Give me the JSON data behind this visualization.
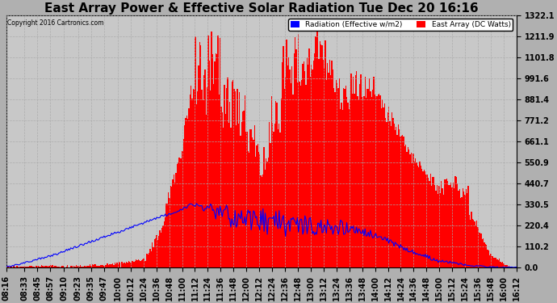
{
  "title": "East Array Power & Effective Solar Radiation Tue Dec 20 16:16",
  "copyright": "Copyright 2016 Cartronics.com",
  "legend_blue": "Radiation (Effective w/m2)",
  "legend_red": "East Array (DC Watts)",
  "ymax": 1322.1,
  "yticks": [
    0.0,
    110.2,
    220.4,
    330.5,
    440.7,
    550.9,
    661.1,
    771.2,
    881.4,
    991.6,
    1101.8,
    1211.9,
    1322.1
  ],
  "ytick_labels": [
    "0.0",
    "110.2",
    "220.4",
    "330.5",
    "440.7",
    "550.9",
    "661.1",
    "771.2",
    "881.4",
    "991.6",
    "1101.8",
    "1211.9",
    "1322.1"
  ],
  "red_color": "#ff0000",
  "blue_color": "#0000ff",
  "title_fontsize": 11,
  "axis_fontsize": 7,
  "tick_labels": [
    "08:16",
    "08:33",
    "08:45",
    "08:57",
    "09:10",
    "09:23",
    "09:35",
    "09:47",
    "10:00",
    "10:12",
    "10:24",
    "10:36",
    "10:48",
    "11:00",
    "11:12",
    "11:24",
    "11:36",
    "11:48",
    "12:00",
    "12:12",
    "12:24",
    "12:36",
    "12:48",
    "13:00",
    "13:12",
    "13:24",
    "13:36",
    "13:48",
    "14:00",
    "14:12",
    "14:24",
    "14:36",
    "14:48",
    "15:00",
    "15:12",
    "15:24",
    "15:36",
    "15:48",
    "16:00",
    "16:12"
  ],
  "start_hhmm": "08:16",
  "end_hhmm": "16:12"
}
